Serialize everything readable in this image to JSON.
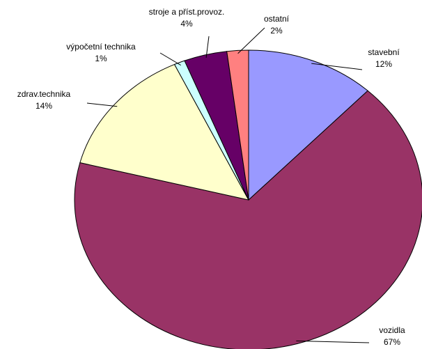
{
  "chart_data": {
    "type": "pie",
    "categories": [
      "stavební",
      "vozidla",
      "zdrav.technika",
      "výpočetní technika",
      "stroje a příst.provoz.",
      "ostatní"
    ],
    "values": [
      12,
      67,
      14,
      1,
      4,
      2
    ],
    "value_labels": [
      "12%",
      "67%",
      "14%",
      "1%",
      "4%",
      "2%"
    ],
    "colors": [
      "#9999ff",
      "#993366",
      "#ffffcc",
      "#ccffff",
      "#660066",
      "#ff8080"
    ]
  }
}
